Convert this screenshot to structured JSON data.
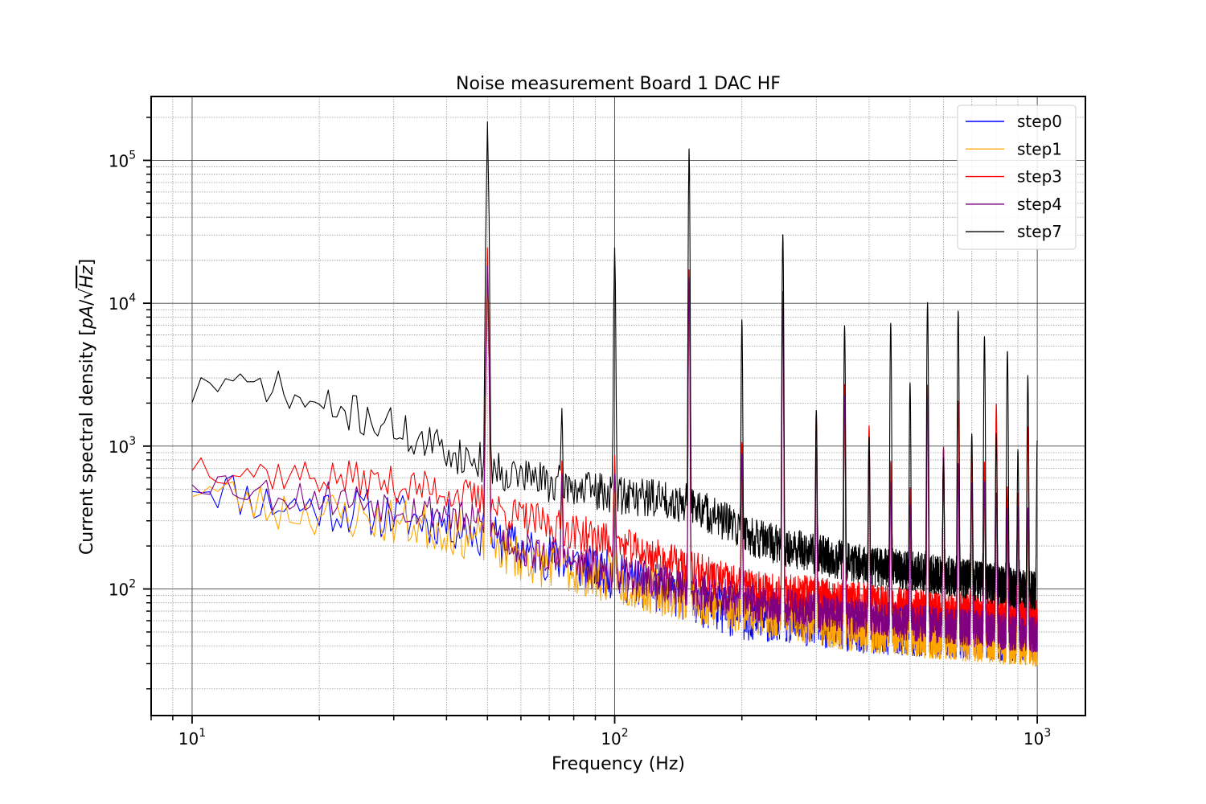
{
  "chart_data": {
    "type": "line",
    "title": "Noise measurement Board 1 DAC HF",
    "xlabel": "Frequency (Hz)",
    "ylabel_prefix": "Current spectral density [",
    "ylabel_unit_base": "pA",
    "ylabel_unit_slash": "/",
    "ylabel_unit_root": "√",
    "ylabel_unit_hz": "Hz",
    "ylabel_suffix": "]",
    "xscale": "log",
    "yscale": "log",
    "xlim": [
      8,
      1300
    ],
    "ylim": [
      13,
      280000
    ],
    "grid": true,
    "legend_position": "top-right",
    "xticks": [
      {
        "base": "10",
        "exp": "1",
        "value": 10
      },
      {
        "base": "10",
        "exp": "2",
        "value": 100
      },
      {
        "base": "10",
        "exp": "3",
        "value": 1000
      }
    ],
    "yticks": [
      {
        "base": "10",
        "exp": "2",
        "value": 100
      },
      {
        "base": "10",
        "exp": "3",
        "value": 1000
      },
      {
        "base": "10",
        "exp": "4",
        "value": 10000
      },
      {
        "base": "10",
        "exp": "5",
        "value": 100000
      }
    ],
    "series": [
      {
        "name": "step0",
        "color": "#0000ff",
        "seed": 11,
        "baseline": [
          [
            10,
            590
          ],
          [
            15,
            400
          ],
          [
            25,
            350
          ],
          [
            40,
            290
          ],
          [
            48,
            240
          ],
          [
            60,
            190
          ],
          [
            80,
            150
          ],
          [
            120,
            105
          ],
          [
            200,
            65
          ],
          [
            400,
            52
          ],
          [
            1000,
            45
          ]
        ],
        "noise": 0.17,
        "peaks": [
          [
            50,
            15000
          ],
          [
            75,
            500
          ],
          [
            100,
            500
          ],
          [
            150,
            14000
          ],
          [
            200,
            700
          ],
          [
            250,
            9000
          ],
          [
            300,
            900
          ],
          [
            350,
            2000
          ],
          [
            400,
            900
          ],
          [
            450,
            500
          ],
          [
            500,
            300
          ],
          [
            550,
            2000
          ],
          [
            600,
            900
          ],
          [
            650,
            700
          ],
          [
            700,
            500
          ],
          [
            750,
            500
          ],
          [
            800,
            400
          ],
          [
            850,
            300
          ],
          [
            900,
            300
          ],
          [
            950,
            300
          ]
        ]
      },
      {
        "name": "step1",
        "color": "#ffa500",
        "seed": 23,
        "baseline": [
          [
            10,
            540
          ],
          [
            15,
            370
          ],
          [
            25,
            320
          ],
          [
            40,
            260
          ],
          [
            48,
            220
          ],
          [
            60,
            165
          ],
          [
            80,
            135
          ],
          [
            120,
            100
          ],
          [
            200,
            72
          ],
          [
            400,
            52
          ],
          [
            1000,
            42
          ]
        ],
        "noise": 0.17,
        "peaks": [
          [
            50,
            15000
          ],
          [
            75,
            480
          ],
          [
            100,
            480
          ],
          [
            150,
            13000
          ],
          [
            200,
            650
          ],
          [
            250,
            9000
          ],
          [
            300,
            800
          ],
          [
            350,
            1800
          ],
          [
            400,
            800
          ],
          [
            450,
            450
          ],
          [
            500,
            280
          ],
          [
            550,
            1800
          ],
          [
            600,
            850
          ],
          [
            650,
            650
          ],
          [
            700,
            450
          ],
          [
            750,
            450
          ],
          [
            800,
            380
          ],
          [
            850,
            280
          ],
          [
            900,
            280
          ],
          [
            950,
            280
          ]
        ]
      },
      {
        "name": "step3",
        "color": "#ff0000",
        "seed": 37,
        "baseline": [
          [
            10,
            780
          ],
          [
            15,
            650
          ],
          [
            25,
            580
          ],
          [
            40,
            480
          ],
          [
            48,
            420
          ],
          [
            55,
            340
          ],
          [
            70,
            280
          ],
          [
            100,
            210
          ],
          [
            150,
            140
          ],
          [
            200,
            105
          ],
          [
            300,
            90
          ],
          [
            500,
            75
          ],
          [
            1000,
            62
          ]
        ],
        "noise": 0.13,
        "peaks": [
          [
            50,
            24000
          ],
          [
            75,
            520
          ],
          [
            100,
            650
          ],
          [
            150,
            17000
          ],
          [
            200,
            950
          ],
          [
            250,
            12000
          ],
          [
            300,
            1600
          ],
          [
            350,
            2600
          ],
          [
            400,
            1300
          ],
          [
            450,
            700
          ],
          [
            500,
            420
          ],
          [
            550,
            2600
          ],
          [
            600,
            920
          ],
          [
            650,
            2000
          ],
          [
            700,
            800
          ],
          [
            750,
            700
          ],
          [
            800,
            1900
          ],
          [
            850,
            450
          ],
          [
            900,
            400
          ],
          [
            950,
            1300
          ]
        ]
      },
      {
        "name": "step4",
        "color": "#800080",
        "seed": 53,
        "baseline": [
          [
            10,
            620
          ],
          [
            15,
            470
          ],
          [
            25,
            420
          ],
          [
            40,
            340
          ],
          [
            48,
            280
          ],
          [
            60,
            190
          ],
          [
            80,
            150
          ],
          [
            120,
            115
          ],
          [
            200,
            82
          ],
          [
            400,
            62
          ],
          [
            1000,
            48
          ]
        ],
        "noise": 0.13,
        "peaks": [
          [
            50,
            18000
          ],
          [
            75,
            480
          ],
          [
            100,
            500
          ],
          [
            150,
            15000
          ],
          [
            200,
            800
          ],
          [
            250,
            10000
          ],
          [
            300,
            900
          ],
          [
            350,
            2200
          ],
          [
            400,
            900
          ],
          [
            450,
            500
          ],
          [
            500,
            320
          ],
          [
            550,
            2200
          ],
          [
            600,
            900
          ],
          [
            650,
            700
          ],
          [
            700,
            500
          ],
          [
            750,
            500
          ],
          [
            800,
            420
          ],
          [
            850,
            320
          ],
          [
            900,
            320
          ],
          [
            950,
            320
          ]
        ]
      },
      {
        "name": "step7",
        "color": "#000000",
        "seed": 71,
        "baseline": [
          [
            10,
            2350
          ],
          [
            11,
            2900
          ],
          [
            12,
            2600
          ],
          [
            13,
            2400
          ],
          [
            15,
            2800
          ],
          [
            17,
            2200
          ],
          [
            20,
            1850
          ],
          [
            25,
            1650
          ],
          [
            30,
            1350
          ],
          [
            35,
            1050
          ],
          [
            40,
            940
          ],
          [
            45,
            820
          ],
          [
            48,
            780
          ],
          [
            55,
            660
          ],
          [
            70,
            560
          ],
          [
            90,
            480
          ],
          [
            120,
            440
          ],
          [
            150,
            400
          ],
          [
            180,
            300
          ],
          [
            220,
            220
          ],
          [
            300,
            175
          ],
          [
            400,
            145
          ],
          [
            600,
            125
          ],
          [
            1000,
            95
          ]
        ],
        "noise": 0.14,
        "peaks": [
          [
            50,
            185000
          ],
          [
            75,
            1300
          ],
          [
            100,
            24000
          ],
          [
            150,
            120000
          ],
          [
            200,
            7400
          ],
          [
            250,
            30000
          ],
          [
            300,
            1600
          ],
          [
            350,
            6800
          ],
          [
            400,
            1000
          ],
          [
            450,
            7100
          ],
          [
            500,
            2600
          ],
          [
            550,
            10000
          ],
          [
            600,
            700
          ],
          [
            650,
            8700
          ],
          [
            700,
            1100
          ],
          [
            750,
            5700
          ],
          [
            800,
            1100
          ],
          [
            850,
            4500
          ],
          [
            900,
            830
          ],
          [
            950,
            3000
          ],
          [
            1000,
            1000
          ]
        ]
      }
    ]
  }
}
